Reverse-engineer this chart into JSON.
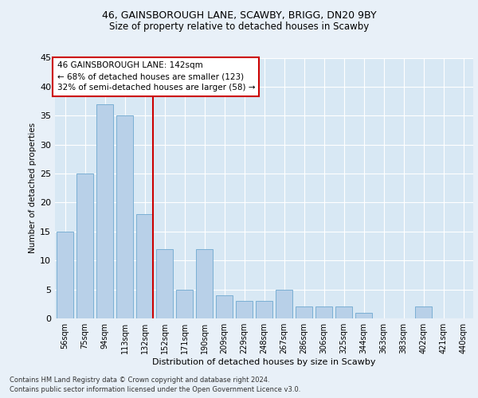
{
  "title1": "46, GAINSBOROUGH LANE, SCAWBY, BRIGG, DN20 9BY",
  "title2": "Size of property relative to detached houses in Scawby",
  "xlabel": "Distribution of detached houses by size in Scawby",
  "ylabel": "Number of detached properties",
  "categories": [
    "56sqm",
    "75sqm",
    "94sqm",
    "113sqm",
    "132sqm",
    "152sqm",
    "171sqm",
    "190sqm",
    "209sqm",
    "229sqm",
    "248sqm",
    "267sqm",
    "286sqm",
    "306sqm",
    "325sqm",
    "344sqm",
    "363sqm",
    "383sqm",
    "402sqm",
    "421sqm",
    "440sqm"
  ],
  "values": [
    15,
    25,
    37,
    35,
    18,
    12,
    5,
    12,
    4,
    3,
    3,
    5,
    2,
    2,
    2,
    1,
    0,
    0,
    2,
    0,
    0
  ],
  "bar_color": "#b8d0e8",
  "bar_edge_color": "#7aafd4",
  "highlight_index": 4,
  "highlight_line_color": "#cc0000",
  "ylim": [
    0,
    45
  ],
  "yticks": [
    0,
    5,
    10,
    15,
    20,
    25,
    30,
    35,
    40,
    45
  ],
  "annotation_line1": "46 GAINSBOROUGH LANE: 142sqm",
  "annotation_line2": "← 68% of detached houses are smaller (123)",
  "annotation_line3": "32% of semi-detached houses are larger (58) →",
  "box_color": "#cc0000",
  "footnote1": "Contains HM Land Registry data © Crown copyright and database right 2024.",
  "footnote2": "Contains public sector information licensed under the Open Government Licence v3.0.",
  "bg_color": "#e8f0f8",
  "plot_bg_color": "#d8e8f4"
}
